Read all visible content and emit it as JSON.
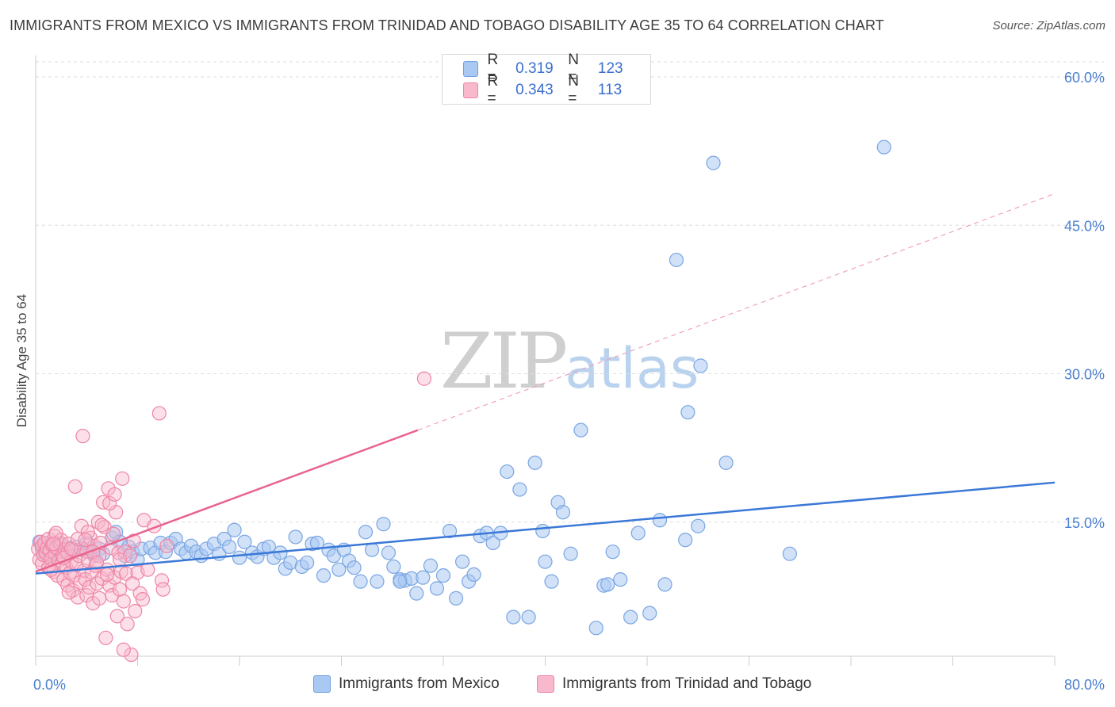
{
  "header": {
    "title": "IMMIGRANTS FROM MEXICO VS IMMIGRANTS FROM TRINIDAD AND TOBAGO DISABILITY AGE 35 TO 64 CORRELATION CHART",
    "source": "Source: ZipAtlas.com"
  },
  "watermark": {
    "zip": "ZIP",
    "atlas": "atlas"
  },
  "legend": {
    "rows": [
      {
        "r_label": "R =",
        "r_value": "0.319",
        "n_label": "N =",
        "n_value": "123",
        "color": "#a9c8f2",
        "border": "#6f9fe0"
      },
      {
        "r_label": "R =",
        "r_value": "0.343",
        "n_label": "N =",
        "n_value": "113",
        "color": "#f8b9cc",
        "border": "#ee86a6"
      }
    ]
  },
  "bottom_legend": [
    {
      "label": "Immigrants from Mexico",
      "color": "#a9c8f2",
      "border": "#6f9fe0"
    },
    {
      "label": "Immigrants from Trinidad and Tobago",
      "color": "#f8b9cc",
      "border": "#ee86a6"
    }
  ],
  "chart_data": {
    "type": "scatter",
    "title": "IMMIGRANTS FROM MEXICO VS IMMIGRANTS FROM TRINIDAD AND TOBAGO DISABILITY AGE 35 TO 64 CORRELATION CHART",
    "ylabel": "Disability Age 35 to 64",
    "xlabel": "",
    "xlim": [
      0,
      80
    ],
    "ylim": [
      0,
      60
    ],
    "x_tick_labels": [
      "0.0%",
      "80.0%"
    ],
    "y_ticks": [
      15,
      30,
      45,
      60
    ],
    "y_tick_labels": [
      "15.0%",
      "30.0%",
      "45.0%",
      "60.0%"
    ],
    "grid": true,
    "legend_placement": "top-center",
    "colors": {
      "mexico": "#3a78d8",
      "trinidad": "#e8648f"
    },
    "series": [
      {
        "name": "Immigrants from Mexico",
        "trend": {
          "x": [
            0,
            80
          ],
          "y": [
            9.8,
            19.0
          ],
          "style": "solid"
        },
        "points": [
          [
            0.3,
            13.0
          ],
          [
            0.5,
            12.3
          ],
          [
            0.7,
            11.8
          ],
          [
            0.9,
            12.8
          ],
          [
            1.0,
            11.5
          ],
          [
            1.2,
            12.1
          ],
          [
            1.4,
            12.6
          ],
          [
            1.6,
            11.9
          ],
          [
            1.8,
            12.4
          ],
          [
            2.0,
            12.7
          ],
          [
            2.3,
            11.9
          ],
          [
            2.6,
            12.4
          ],
          [
            2.9,
            12.0
          ],
          [
            3.2,
            12.5
          ],
          [
            3.5,
            12.2
          ],
          [
            4.0,
            12.9
          ],
          [
            4.3,
            12.0
          ],
          [
            4.6,
            11.6
          ],
          [
            5.0,
            12.3
          ],
          [
            5.3,
            11.8
          ],
          [
            6.0,
            13.4
          ],
          [
            6.3,
            14.0
          ],
          [
            6.6,
            13.0
          ],
          [
            7.0,
            11.6
          ],
          [
            7.3,
            12.5
          ],
          [
            7.6,
            12.0
          ],
          [
            8.0,
            11.2
          ],
          [
            8.3,
            12.3
          ],
          [
            9.0,
            12.4
          ],
          [
            9.4,
            11.9
          ],
          [
            9.8,
            12.9
          ],
          [
            10.2,
            12.0
          ],
          [
            10.6,
            12.9
          ],
          [
            11.0,
            13.3
          ],
          [
            11.4,
            12.3
          ],
          [
            11.8,
            11.9
          ],
          [
            12.2,
            12.6
          ],
          [
            12.6,
            12.0
          ],
          [
            13.0,
            11.6
          ],
          [
            13.4,
            12.3
          ],
          [
            14.0,
            12.8
          ],
          [
            14.4,
            11.8
          ],
          [
            14.8,
            13.3
          ],
          [
            15.2,
            12.5
          ],
          [
            15.6,
            14.2
          ],
          [
            16.0,
            11.4
          ],
          [
            16.4,
            13.0
          ],
          [
            17.0,
            11.9
          ],
          [
            17.4,
            11.5
          ],
          [
            17.9,
            12.3
          ],
          [
            18.3,
            12.5
          ],
          [
            18.7,
            11.4
          ],
          [
            19.2,
            11.9
          ],
          [
            19.6,
            10.3
          ],
          [
            20.0,
            10.9
          ],
          [
            20.4,
            13.5
          ],
          [
            20.9,
            10.5
          ],
          [
            21.3,
            10.9
          ],
          [
            21.7,
            12.8
          ],
          [
            22.1,
            12.9
          ],
          [
            22.6,
            9.6
          ],
          [
            23.0,
            12.2
          ],
          [
            23.4,
            11.6
          ],
          [
            23.8,
            10.2
          ],
          [
            24.2,
            12.2
          ],
          [
            24.6,
            11.1
          ],
          [
            25.0,
            10.4
          ],
          [
            25.5,
            9.0
          ],
          [
            25.9,
            14.0
          ],
          [
            26.4,
            12.2
          ],
          [
            26.8,
            9.0
          ],
          [
            27.3,
            14.8
          ],
          [
            27.7,
            11.9
          ],
          [
            28.1,
            10.5
          ],
          [
            28.6,
            9.2
          ],
          [
            29.0,
            9.1
          ],
          [
            29.5,
            9.3
          ],
          [
            29.9,
            7.8
          ],
          [
            30.4,
            9.4
          ],
          [
            31.0,
            10.6
          ],
          [
            31.5,
            8.3
          ],
          [
            32.0,
            9.6
          ],
          [
            32.5,
            14.1
          ],
          [
            33.0,
            7.3
          ],
          [
            33.5,
            11.0
          ],
          [
            34.0,
            9.0
          ],
          [
            34.4,
            9.7
          ],
          [
            34.9,
            13.6
          ],
          [
            35.4,
            13.9
          ],
          [
            35.9,
            12.9
          ],
          [
            36.5,
            13.9
          ],
          [
            37.0,
            20.1
          ],
          [
            37.5,
            5.4
          ],
          [
            38.0,
            18.3
          ],
          [
            38.7,
            5.4
          ],
          [
            39.2,
            21.0
          ],
          [
            39.8,
            14.1
          ],
          [
            40.5,
            9.0
          ],
          [
            41.0,
            17.0
          ],
          [
            41.4,
            16.0
          ],
          [
            42.0,
            11.8
          ],
          [
            42.8,
            24.3
          ],
          [
            44.0,
            4.3
          ],
          [
            44.6,
            8.6
          ],
          [
            44.9,
            8.7
          ],
          [
            45.3,
            12.0
          ],
          [
            45.9,
            9.2
          ],
          [
            46.7,
            5.4
          ],
          [
            47.3,
            13.9
          ],
          [
            48.2,
            5.8
          ],
          [
            49.0,
            15.2
          ],
          [
            49.4,
            8.7
          ],
          [
            50.3,
            41.5
          ],
          [
            51.0,
            13.2
          ],
          [
            51.2,
            26.1
          ],
          [
            52.0,
            14.6
          ],
          [
            52.2,
            30.8
          ],
          [
            53.2,
            51.3
          ],
          [
            54.2,
            21.0
          ],
          [
            59.2,
            11.8
          ],
          [
            66.6,
            52.9
          ],
          [
            28.6,
            9.0
          ],
          [
            40.0,
            11.0
          ]
        ]
      },
      {
        "name": "Immigrants from Trinidad and Tobago",
        "trend": {
          "x": [
            0,
            30
          ],
          "y": [
            10.0,
            24.3
          ],
          "style": "solid",
          "extension": {
            "x": [
              30,
              80
            ],
            "y": [
              24.3,
              48.2
            ],
            "style": "dashed"
          }
        },
        "points": [
          [
            0.2,
            12.3
          ],
          [
            0.3,
            11.2
          ],
          [
            0.4,
            13.0
          ],
          [
            0.5,
            12.6
          ],
          [
            0.5,
            10.8
          ],
          [
            0.6,
            11.7
          ],
          [
            0.7,
            12.9
          ],
          [
            0.8,
            11.9
          ],
          [
            0.9,
            12.4
          ],
          [
            1.0,
            10.4
          ],
          [
            1.0,
            13.3
          ],
          [
            1.1,
            12.1
          ],
          [
            1.2,
            11.3
          ],
          [
            1.3,
            12.7
          ],
          [
            1.4,
            10.0
          ],
          [
            1.5,
            13.6
          ],
          [
            1.5,
            11.8
          ],
          [
            1.6,
            12.4
          ],
          [
            1.7,
            9.6
          ],
          [
            1.8,
            11.1
          ],
          [
            1.9,
            12.9
          ],
          [
            2.0,
            10.7
          ],
          [
            2.0,
            13.2
          ],
          [
            2.1,
            11.6
          ],
          [
            2.2,
            9.2
          ],
          [
            2.3,
            12.2
          ],
          [
            2.4,
            10.4
          ],
          [
            2.5,
            8.6
          ],
          [
            2.5,
            11.9
          ],
          [
            2.6,
            12.8
          ],
          [
            2.7,
            9.9
          ],
          [
            2.8,
            11.0
          ],
          [
            2.9,
            8.1
          ],
          [
            3.0,
            12.2
          ],
          [
            3.0,
            9.6
          ],
          [
            3.1,
            18.6
          ],
          [
            3.2,
            10.7
          ],
          [
            3.3,
            7.4
          ],
          [
            3.4,
            11.6
          ],
          [
            3.5,
            8.9
          ],
          [
            3.6,
            12.3
          ],
          [
            3.7,
            23.7
          ],
          [
            3.8,
            10.1
          ],
          [
            3.9,
            9.2
          ],
          [
            4.0,
            12.0
          ],
          [
            4.0,
            7.6
          ],
          [
            4.1,
            11.1
          ],
          [
            4.2,
            8.4
          ],
          [
            4.3,
            13.4
          ],
          [
            4.4,
            9.9
          ],
          [
            4.5,
            6.8
          ],
          [
            4.6,
            12.6
          ],
          [
            4.7,
            10.6
          ],
          [
            4.8,
            8.8
          ],
          [
            4.9,
            15.0
          ],
          [
            5.0,
            11.6
          ],
          [
            5.0,
            7.3
          ],
          [
            5.1,
            12.9
          ],
          [
            5.2,
            9.3
          ],
          [
            5.3,
            17.0
          ],
          [
            5.4,
            14.5
          ],
          [
            5.5,
            3.3
          ],
          [
            5.6,
            10.2
          ],
          [
            5.7,
            18.4
          ],
          [
            5.8,
            8.6
          ],
          [
            5.9,
            12.4
          ],
          [
            6.0,
            7.6
          ],
          [
            6.1,
            13.8
          ],
          [
            6.2,
            9.4
          ],
          [
            6.3,
            16.0
          ],
          [
            6.4,
            5.5
          ],
          [
            6.5,
            11.9
          ],
          [
            6.6,
            8.2
          ],
          [
            6.7,
            10.0
          ],
          [
            6.8,
            19.4
          ],
          [
            6.9,
            7.0
          ],
          [
            7.0,
            12.0
          ],
          [
            7.1,
            9.8
          ],
          [
            7.2,
            4.7
          ],
          [
            7.4,
            11.6
          ],
          [
            7.5,
            1.6
          ],
          [
            7.6,
            8.8
          ],
          [
            7.8,
            6.0
          ],
          [
            8.0,
            9.9
          ],
          [
            8.2,
            7.8
          ],
          [
            8.5,
            15.2
          ],
          [
            8.8,
            10.2
          ],
          [
            9.3,
            14.6
          ],
          [
            9.7,
            26.0
          ],
          [
            9.9,
            9.1
          ],
          [
            10.0,
            8.2
          ],
          [
            10.3,
            12.6
          ],
          [
            30.5,
            29.5
          ],
          [
            1.2,
            10.2
          ],
          [
            1.6,
            13.9
          ],
          [
            2.2,
            11.4
          ],
          [
            2.8,
            12.3
          ],
          [
            3.3,
            13.3
          ],
          [
            3.6,
            14.6
          ],
          [
            4.1,
            14.0
          ],
          [
            4.5,
            12.0
          ],
          [
            5.2,
            14.7
          ],
          [
            5.8,
            16.9
          ],
          [
            6.2,
            17.8
          ],
          [
            6.6,
            11.2
          ],
          [
            1.4,
            12.8
          ],
          [
            2.6,
            7.9
          ],
          [
            3.9,
            13.2
          ],
          [
            4.8,
            10.9
          ],
          [
            5.6,
            9.7
          ],
          [
            6.9,
            2.1
          ],
          [
            7.7,
            13.1
          ],
          [
            8.4,
            7.2
          ]
        ]
      }
    ]
  }
}
